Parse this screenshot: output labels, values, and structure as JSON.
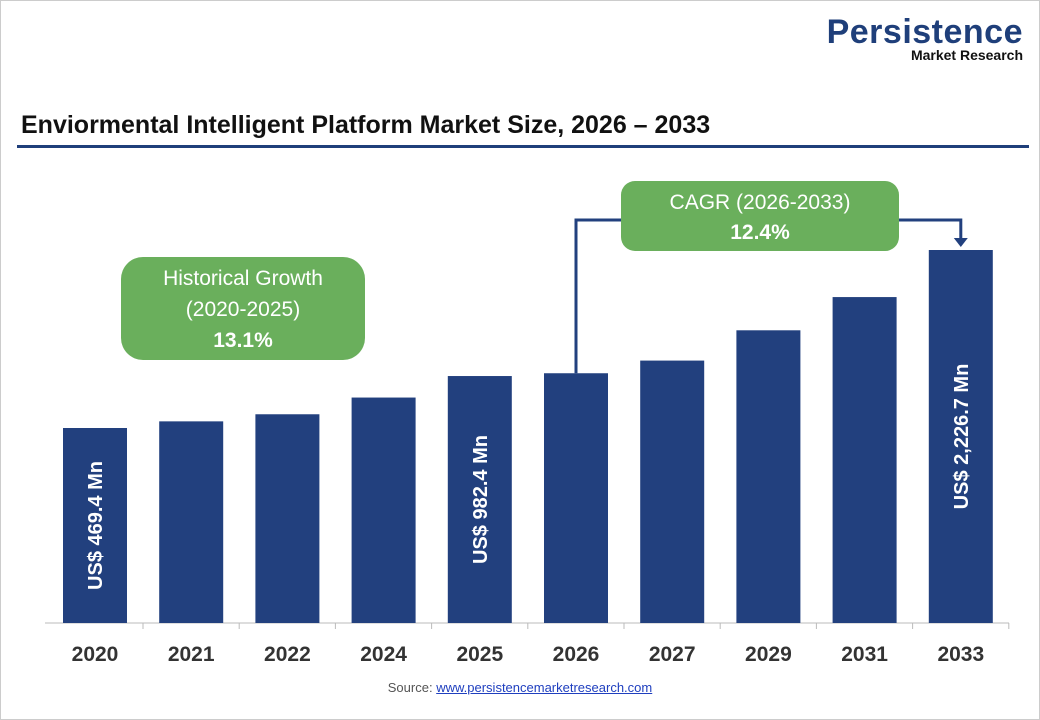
{
  "logo": {
    "brand": "Persistence",
    "sub": "Market Research"
  },
  "title": "Enviormental Intelligent Platform Market Size, 2026 – 2033",
  "source": {
    "label": "Source:",
    "link": "www.persistencemarketresearch.com"
  },
  "colors": {
    "bar": "#22407e",
    "callout": "#6aaf5c",
    "rule": "#1f3f7a"
  },
  "chart_data": {
    "type": "bar",
    "categories": [
      "2020",
      "2021",
      "2022",
      "2024",
      "2025",
      "2026",
      "2027",
      "2029",
      "2031",
      "2033"
    ],
    "values": [
      469.4,
      535,
      605,
      770,
      982.4,
      1010,
      1135,
      1434,
      1762,
      2226.7
    ],
    "data_labels": {
      "2020": "US$ 469.4 Mn",
      "2025": "US$ 982.4 Mn",
      "2033": "US$ 2,226.7 Mn"
    },
    "unit": "US$ Mn",
    "grid": false,
    "annotations": [
      {
        "lines": [
          "Historical Growth",
          "(2020-2025)",
          "13.1%"
        ]
      },
      {
        "lines": [
          "CAGR (2026-2033)",
          "12.4%"
        ]
      }
    ]
  }
}
